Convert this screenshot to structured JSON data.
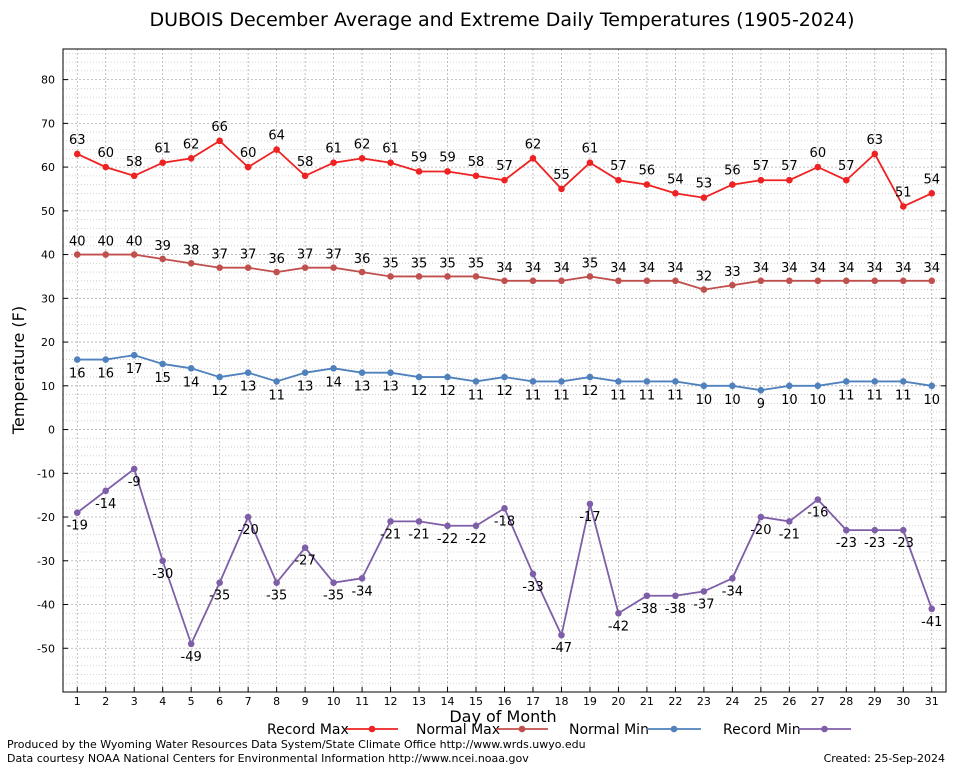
{
  "chart_data": {
    "type": "line",
    "title": "DUBOIS December Average and Extreme Daily Temperatures (1905-2024)",
    "xlabel": "Day of Month",
    "ylabel": "Temperature (F)",
    "x": [
      1,
      2,
      3,
      4,
      5,
      6,
      7,
      8,
      9,
      10,
      11,
      12,
      13,
      14,
      15,
      16,
      17,
      18,
      19,
      20,
      21,
      22,
      23,
      24,
      25,
      26,
      27,
      28,
      29,
      30,
      31
    ],
    "xlim": [
      0.5,
      31.5
    ],
    "ylim": [
      -60,
      87
    ],
    "yticks": [
      -50,
      -40,
      -30,
      -20,
      -10,
      0,
      10,
      20,
      30,
      40,
      50,
      60,
      70,
      80
    ],
    "grid": true,
    "legend_position": "bottom",
    "series": [
      {
        "name": "Record Max",
        "color": "#ee2222",
        "values": [
          63,
          60,
          58,
          61,
          62,
          66,
          60,
          64,
          58,
          61,
          62,
          61,
          59,
          59,
          58,
          57,
          62,
          55,
          61,
          57,
          56,
          54,
          53,
          56,
          57,
          57,
          60,
          57,
          63,
          51,
          54
        ]
      },
      {
        "name": "Normal Max",
        "color": "#c0504d",
        "values": [
          40,
          40,
          40,
          39,
          38,
          37,
          37,
          36,
          37,
          37,
          36,
          35,
          35,
          35,
          35,
          34,
          34,
          34,
          35,
          34,
          34,
          34,
          32,
          33,
          34,
          34,
          34,
          34,
          34,
          34,
          34
        ]
      },
      {
        "name": "Normal Min",
        "color": "#4f81bd",
        "values": [
          16,
          16,
          17,
          15,
          14,
          12,
          13,
          11,
          13,
          14,
          13,
          13,
          12,
          12,
          11,
          12,
          11,
          11,
          12,
          11,
          11,
          11,
          10,
          10,
          9,
          10,
          10,
          11,
          11,
          11,
          10
        ]
      },
      {
        "name": "Record Min",
        "color": "#7e5ea8",
        "values": [
          -19,
          -14,
          -9,
          -30,
          -49,
          -35,
          -20,
          -35,
          -27,
          -35,
          -34,
          -21,
          -21,
          -22,
          -22,
          -18,
          -33,
          -47,
          -17,
          -42,
          -38,
          -38,
          -37,
          -34,
          -20,
          -21,
          -16,
          -23,
          -23,
          -23,
          -41
        ]
      }
    ]
  },
  "footer": {
    "line1": "Produced by the Wyoming Water Resources Data System/State Climate Office http://www.wrds.uwyo.edu",
    "line2": "Data courtesy NOAA National Centers for Environmental Information http://www.ncei.noaa.gov",
    "created": "Created:  25-Sep-2024"
  }
}
